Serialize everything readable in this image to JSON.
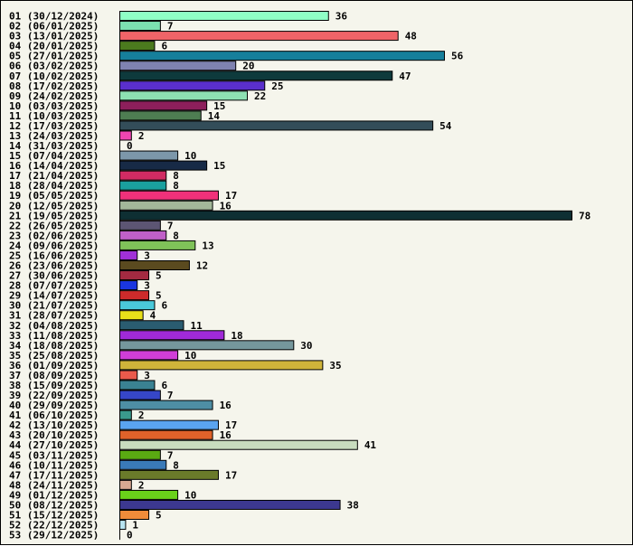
{
  "chart_data": {
    "type": "bar",
    "orientation": "horizontal",
    "title": "",
    "xlabel": "",
    "ylabel": "",
    "xlim": [
      0,
      78
    ],
    "grid": false,
    "legend": "none",
    "categories": [
      "01 (30/12/2024)",
      "02 (06/01/2025)",
      "03 (13/01/2025)",
      "04 (20/01/2025)",
      "05 (27/01/2025)",
      "06 (03/02/2025)",
      "07 (10/02/2025)",
      "08 (17/02/2025)",
      "09 (24/02/2025)",
      "10 (03/03/2025)",
      "11 (10/03/2025)",
      "12 (17/03/2025)",
      "13 (24/03/2025)",
      "14 (31/03/2025)",
      "15 (07/04/2025)",
      "16 (14/04/2025)",
      "17 (21/04/2025)",
      "18 (28/04/2025)",
      "19 (05/05/2025)",
      "20 (12/05/2025)",
      "21 (19/05/2025)",
      "22 (26/05/2025)",
      "23 (02/06/2025)",
      "24 (09/06/2025)",
      "25 (16/06/2025)",
      "26 (23/06/2025)",
      "27 (30/06/2025)",
      "28 (07/07/2025)",
      "29 (14/07/2025)",
      "30 (21/07/2025)",
      "31 (28/07/2025)",
      "32 (04/08/2025)",
      "33 (11/08/2025)",
      "34 (18/08/2025)",
      "35 (25/08/2025)",
      "36 (01/09/2025)",
      "37 (08/09/2025)",
      "38 (15/09/2025)",
      "39 (22/09/2025)",
      "40 (29/09/2025)",
      "41 (06/10/2025)",
      "42 (13/10/2025)",
      "43 (20/10/2025)",
      "44 (27/10/2025)",
      "45 (03/11/2025)",
      "46 (10/11/2025)",
      "47 (17/11/2025)",
      "48 (24/11/2025)",
      "49 (01/12/2025)",
      "50 (08/12/2025)",
      "51 (15/12/2025)",
      "52 (22/12/2025)",
      "53 (29/12/2025)"
    ],
    "values": [
      36,
      7,
      48,
      6,
      56,
      20,
      47,
      25,
      22,
      15,
      14,
      54,
      2,
      0,
      10,
      15,
      8,
      8,
      17,
      16,
      78,
      7,
      8,
      13,
      3,
      12,
      5,
      3,
      5,
      6,
      4,
      11,
      18,
      30,
      10,
      35,
      3,
      6,
      7,
      16,
      2,
      17,
      16,
      41,
      7,
      8,
      17,
      2,
      10,
      38,
      5,
      1,
      0
    ],
    "colors": [
      "#8fffc6",
      "#7ce0b0",
      "#f06468",
      "#4b7a1e",
      "#167f9b",
      "#7f82b0",
      "#0e3a3c",
      "#5a2fcc",
      "#8de0b2",
      "#8d1f5b",
      "#4e7d52",
      "#334d59",
      "#ef45b1",
      "#ffffff",
      "#7c97aa",
      "#172a46",
      "#d12b63",
      "#1aa09e",
      "#f0317a",
      "#a3b89a",
      "#0e2f33",
      "#5c5573",
      "#c060c8",
      "#7fc259",
      "#a030d8",
      "#5a4a1f",
      "#a32a41",
      "#1a36e0",
      "#cc2b2b",
      "#4ac9da",
      "#e8e01a",
      "#2a5c70",
      "#a02ad8",
      "#75979c",
      "#d03ed8",
      "#cfb43a",
      "#ea5a4c",
      "#3a8292",
      "#3646c8",
      "#4e8ea4",
      "#3a9a8c",
      "#5aa4f0",
      "#e0622a",
      "#c8dcbe",
      "#5aaa12",
      "#3a7ab8",
      "#6a7a2a",
      "#d8a892",
      "#6ad11a",
      "#3c3890",
      "#f08c3a",
      "#b8e4f0",
      "#ffffff"
    ]
  }
}
